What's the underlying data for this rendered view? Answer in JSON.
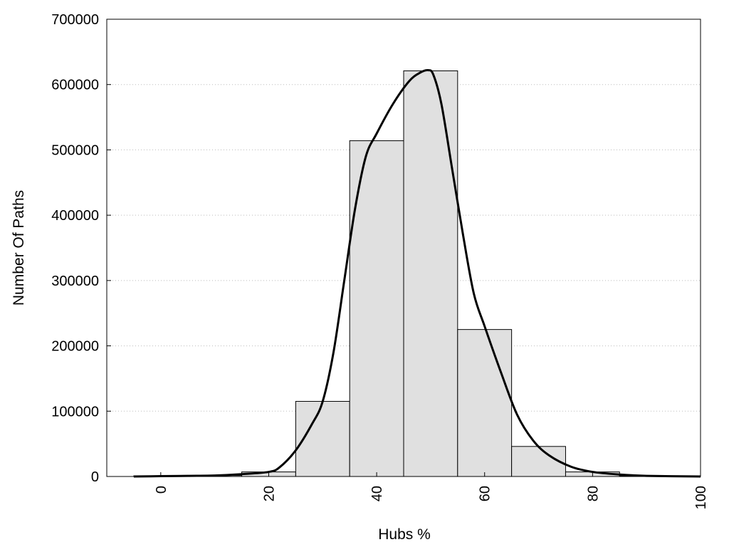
{
  "chart_data": {
    "type": "bar",
    "title": "",
    "xlabel": "Hubs %",
    "ylabel": "Number Of Paths",
    "xlim": [
      -10,
      100
    ],
    "ylim": [
      0,
      700000
    ],
    "x_ticks": [
      "0",
      "20",
      "40",
      "60",
      "80",
      "100"
    ],
    "y_ticks": [
      "0",
      "100000",
      "200000",
      "300000",
      "400000",
      "500000",
      "600000",
      "700000"
    ],
    "grid": "horizontal-dotted",
    "bin_width": 10,
    "bar_fill": "#e0e0e0",
    "bar_stroke": "#000000",
    "line_color": "#000000",
    "bars": [
      {
        "center": 0,
        "value": 1000
      },
      {
        "center": 10,
        "value": 1500
      },
      {
        "center": 20,
        "value": 7000
      },
      {
        "center": 30,
        "value": 115000
      },
      {
        "center": 40,
        "value": 514000
      },
      {
        "center": 50,
        "value": 621000
      },
      {
        "center": 60,
        "value": 225000
      },
      {
        "center": 70,
        "value": 46000
      },
      {
        "center": 80,
        "value": 7000
      },
      {
        "center": 90,
        "value": 1000
      }
    ],
    "density_curve": [
      {
        "x": -5,
        "y": 0
      },
      {
        "x": 0,
        "y": 500
      },
      {
        "x": 5,
        "y": 1000
      },
      {
        "x": 10,
        "y": 1500
      },
      {
        "x": 15,
        "y": 3500
      },
      {
        "x": 20,
        "y": 7000
      },
      {
        "x": 22,
        "y": 14000
      },
      {
        "x": 25,
        "y": 40000
      },
      {
        "x": 28,
        "y": 80000
      },
      {
        "x": 30,
        "y": 115000
      },
      {
        "x": 32,
        "y": 190000
      },
      {
        "x": 34,
        "y": 300000
      },
      {
        "x": 36,
        "y": 410000
      },
      {
        "x": 38,
        "y": 490000
      },
      {
        "x": 40,
        "y": 525000
      },
      {
        "x": 43,
        "y": 570000
      },
      {
        "x": 46,
        "y": 605000
      },
      {
        "x": 48,
        "y": 618000
      },
      {
        "x": 49.5,
        "y": 622000
      },
      {
        "x": 50.5,
        "y": 615000
      },
      {
        "x": 52,
        "y": 570000
      },
      {
        "x": 54,
        "y": 470000
      },
      {
        "x": 56,
        "y": 370000
      },
      {
        "x": 58,
        "y": 280000
      },
      {
        "x": 60,
        "y": 230000
      },
      {
        "x": 63,
        "y": 160000
      },
      {
        "x": 66,
        "y": 95000
      },
      {
        "x": 69,
        "y": 55000
      },
      {
        "x": 72,
        "y": 32000
      },
      {
        "x": 76,
        "y": 15000
      },
      {
        "x": 80,
        "y": 7000
      },
      {
        "x": 85,
        "y": 3000
      },
      {
        "x": 90,
        "y": 1000
      },
      {
        "x": 100,
        "y": 0
      }
    ]
  }
}
